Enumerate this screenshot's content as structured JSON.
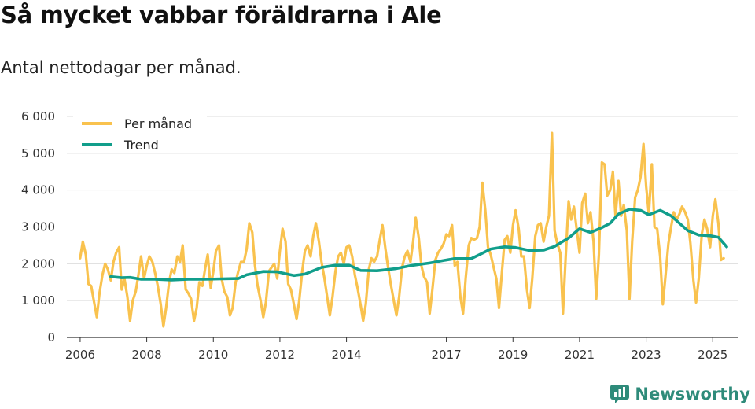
{
  "title": "Så mycket vabbar föräldrarna i Ale",
  "subtitle": "Antal nettodagar per månad.",
  "brand": {
    "name": "Newsworthy",
    "icon": "newsworthy-logo-icon",
    "color": "#2e8b7a"
  },
  "chart_data": {
    "type": "line",
    "title": "Så mycket vabbar föräldrarna i Ale",
    "subtitle": "Antal nettodagar per månad.",
    "xlabel": "",
    "ylabel": "",
    "xlim": [
      2005.6,
      2025.75
    ],
    "ylim": [
      0,
      6000
    ],
    "grid": true,
    "legend_position": "top-left",
    "x_ticks": [
      {
        "value": 2006,
        "label": "2006"
      },
      {
        "value": 2008,
        "label": "2008"
      },
      {
        "value": 2010,
        "label": "2010"
      },
      {
        "value": 2012,
        "label": "2012"
      },
      {
        "value": 2014,
        "label": "2014"
      },
      {
        "value": 2017,
        "label": "2017"
      },
      {
        "value": 2019,
        "label": "2019"
      },
      {
        "value": 2021,
        "label": "2021"
      },
      {
        "value": 2023,
        "label": "2023"
      },
      {
        "value": 2025,
        "label": "2025"
      }
    ],
    "y_ticks": [
      {
        "value": 0,
        "label": "0"
      },
      {
        "value": 1000,
        "label": "1 000"
      },
      {
        "value": 2000,
        "label": "2 000"
      },
      {
        "value": 3000,
        "label": "3 000"
      },
      {
        "value": 4000,
        "label": "4 000"
      },
      {
        "value": 5000,
        "label": "5 000"
      },
      {
        "value": 6000,
        "label": "6 000"
      }
    ],
    "series": [
      {
        "name": "Per månad",
        "color": "#f9c24e",
        "points": [
          [
            2006.0,
            2150
          ],
          [
            2006.08,
            2600
          ],
          [
            2006.17,
            2250
          ],
          [
            2006.25,
            1450
          ],
          [
            2006.33,
            1400
          ],
          [
            2006.42,
            950
          ],
          [
            2006.5,
            550
          ],
          [
            2006.58,
            1200
          ],
          [
            2006.67,
            1700
          ],
          [
            2006.75,
            2000
          ],
          [
            2006.83,
            1850
          ],
          [
            2006.92,
            1550
          ],
          [
            2007.0,
            2050
          ],
          [
            2007.08,
            2300
          ],
          [
            2007.17,
            2450
          ],
          [
            2007.25,
            1300
          ],
          [
            2007.33,
            1600
          ],
          [
            2007.42,
            1100
          ],
          [
            2007.5,
            450
          ],
          [
            2007.58,
            1000
          ],
          [
            2007.67,
            1250
          ],
          [
            2007.75,
            1700
          ],
          [
            2007.83,
            2200
          ],
          [
            2007.92,
            1600
          ],
          [
            2008.0,
            1950
          ],
          [
            2008.08,
            2200
          ],
          [
            2008.17,
            2050
          ],
          [
            2008.25,
            1750
          ],
          [
            2008.33,
            1400
          ],
          [
            2008.42,
            900
          ],
          [
            2008.5,
            300
          ],
          [
            2008.58,
            800
          ],
          [
            2008.67,
            1500
          ],
          [
            2008.75,
            1850
          ],
          [
            2008.83,
            1750
          ],
          [
            2008.92,
            2200
          ],
          [
            2009.0,
            2050
          ],
          [
            2009.08,
            2500
          ],
          [
            2009.17,
            1300
          ],
          [
            2009.25,
            1200
          ],
          [
            2009.33,
            1050
          ],
          [
            2009.42,
            450
          ],
          [
            2009.5,
            800
          ],
          [
            2009.58,
            1500
          ],
          [
            2009.67,
            1400
          ],
          [
            2009.75,
            1850
          ],
          [
            2009.83,
            2250
          ],
          [
            2009.92,
            1350
          ],
          [
            2010.0,
            1800
          ],
          [
            2010.08,
            2350
          ],
          [
            2010.17,
            2500
          ],
          [
            2010.25,
            1600
          ],
          [
            2010.33,
            1250
          ],
          [
            2010.42,
            1100
          ],
          [
            2010.5,
            600
          ],
          [
            2010.58,
            800
          ],
          [
            2010.67,
            1500
          ],
          [
            2010.75,
            1800
          ],
          [
            2010.83,
            2050
          ],
          [
            2010.92,
            2050
          ],
          [
            2011.0,
            2400
          ],
          [
            2011.08,
            3100
          ],
          [
            2011.17,
            2850
          ],
          [
            2011.25,
            1950
          ],
          [
            2011.33,
            1400
          ],
          [
            2011.42,
            1000
          ],
          [
            2011.5,
            550
          ],
          [
            2011.58,
            950
          ],
          [
            2011.67,
            1800
          ],
          [
            2011.75,
            1900
          ],
          [
            2011.83,
            2000
          ],
          [
            2011.92,
            1600
          ],
          [
            2012.0,
            2350
          ],
          [
            2012.08,
            2950
          ],
          [
            2012.17,
            2600
          ],
          [
            2012.25,
            1450
          ],
          [
            2012.33,
            1300
          ],
          [
            2012.42,
            900
          ],
          [
            2012.5,
            500
          ],
          [
            2012.58,
            1000
          ],
          [
            2012.67,
            1800
          ],
          [
            2012.75,
            2350
          ],
          [
            2012.83,
            2500
          ],
          [
            2012.92,
            2200
          ],
          [
            2013.0,
            2750
          ],
          [
            2013.08,
            3100
          ],
          [
            2013.17,
            2600
          ],
          [
            2013.25,
            2050
          ],
          [
            2013.33,
            1650
          ],
          [
            2013.42,
            1100
          ],
          [
            2013.5,
            600
          ],
          [
            2013.58,
            1100
          ],
          [
            2013.67,
            1800
          ],
          [
            2013.75,
            2200
          ],
          [
            2013.83,
            2300
          ],
          [
            2013.92,
            2000
          ],
          [
            2014.0,
            2450
          ],
          [
            2014.08,
            2500
          ],
          [
            2014.17,
            2200
          ],
          [
            2014.25,
            1700
          ],
          [
            2014.33,
            1350
          ],
          [
            2014.42,
            900
          ],
          [
            2014.5,
            450
          ],
          [
            2014.58,
            900
          ],
          [
            2014.67,
            1850
          ],
          [
            2014.75,
            2150
          ],
          [
            2014.83,
            2050
          ],
          [
            2014.92,
            2200
          ],
          [
            2015.0,
            2650
          ],
          [
            2015.08,
            3050
          ],
          [
            2015.17,
            2400
          ],
          [
            2015.25,
            1900
          ],
          [
            2015.33,
            1450
          ],
          [
            2015.42,
            1000
          ],
          [
            2015.5,
            600
          ],
          [
            2015.58,
            1100
          ],
          [
            2015.67,
            1900
          ],
          [
            2015.75,
            2200
          ],
          [
            2015.83,
            2350
          ],
          [
            2015.92,
            2050
          ],
          [
            2016.0,
            2600
          ],
          [
            2016.08,
            3250
          ],
          [
            2016.17,
            2700
          ],
          [
            2016.25,
            1950
          ],
          [
            2016.33,
            1650
          ],
          [
            2016.42,
            1500
          ],
          [
            2016.5,
            650
          ],
          [
            2016.58,
            1300
          ],
          [
            2016.67,
            2100
          ],
          [
            2016.75,
            2300
          ],
          [
            2016.83,
            2400
          ],
          [
            2016.92,
            2550
          ],
          [
            2017.0,
            2800
          ],
          [
            2017.08,
            2750
          ],
          [
            2017.17,
            3050
          ],
          [
            2017.25,
            1950
          ],
          [
            2017.33,
            2050
          ],
          [
            2017.42,
            1100
          ],
          [
            2017.5,
            650
          ],
          [
            2017.58,
            1600
          ],
          [
            2017.67,
            2500
          ],
          [
            2017.75,
            2700
          ],
          [
            2017.83,
            2650
          ],
          [
            2017.92,
            2700
          ],
          [
            2018.0,
            3000
          ],
          [
            2018.08,
            4200
          ],
          [
            2018.17,
            3450
          ],
          [
            2018.25,
            2450
          ],
          [
            2018.33,
            2250
          ],
          [
            2018.42,
            1900
          ],
          [
            2018.5,
            1600
          ],
          [
            2018.58,
            800
          ],
          [
            2018.67,
            1800
          ],
          [
            2018.75,
            2650
          ],
          [
            2018.83,
            2750
          ],
          [
            2018.92,
            2300
          ],
          [
            2019.0,
            3050
          ],
          [
            2019.08,
            3450
          ],
          [
            2019.17,
            2950
          ],
          [
            2019.25,
            2200
          ],
          [
            2019.33,
            2200
          ],
          [
            2019.42,
            1300
          ],
          [
            2019.5,
            800
          ],
          [
            2019.58,
            1600
          ],
          [
            2019.67,
            2750
          ],
          [
            2019.75,
            3050
          ],
          [
            2019.83,
            3100
          ],
          [
            2019.92,
            2600
          ],
          [
            2020.0,
            3000
          ],
          [
            2020.08,
            3300
          ],
          [
            2020.17,
            5550
          ],
          [
            2020.25,
            2900
          ],
          [
            2020.33,
            2550
          ],
          [
            2020.42,
            2300
          ],
          [
            2020.5,
            650
          ],
          [
            2020.58,
            2100
          ],
          [
            2020.67,
            3700
          ],
          [
            2020.75,
            3200
          ],
          [
            2020.83,
            3550
          ],
          [
            2020.92,
            2900
          ],
          [
            2021.0,
            2300
          ],
          [
            2021.08,
            3650
          ],
          [
            2021.17,
            3900
          ],
          [
            2021.25,
            3100
          ],
          [
            2021.33,
            3400
          ],
          [
            2021.42,
            2600
          ],
          [
            2021.5,
            1050
          ],
          [
            2021.58,
            2250
          ],
          [
            2021.67,
            4750
          ],
          [
            2021.75,
            4700
          ],
          [
            2021.83,
            3850
          ],
          [
            2021.92,
            4000
          ],
          [
            2022.0,
            4500
          ],
          [
            2022.08,
            3300
          ],
          [
            2022.17,
            4250
          ],
          [
            2022.25,
            3300
          ],
          [
            2022.33,
            3600
          ],
          [
            2022.42,
            2900
          ],
          [
            2022.5,
            1050
          ],
          [
            2022.58,
            2600
          ],
          [
            2022.67,
            3800
          ],
          [
            2022.75,
            4000
          ],
          [
            2022.83,
            4350
          ],
          [
            2022.92,
            5250
          ],
          [
            2023.0,
            4100
          ],
          [
            2023.08,
            3350
          ],
          [
            2023.17,
            4700
          ],
          [
            2023.25,
            3000
          ],
          [
            2023.33,
            2950
          ],
          [
            2023.42,
            2200
          ],
          [
            2023.5,
            900
          ],
          [
            2023.58,
            1650
          ],
          [
            2023.67,
            2550
          ],
          [
            2023.75,
            3000
          ],
          [
            2023.83,
            3400
          ],
          [
            2023.92,
            3200
          ],
          [
            2024.0,
            3350
          ],
          [
            2024.08,
            3550
          ],
          [
            2024.17,
            3400
          ],
          [
            2024.25,
            3200
          ],
          [
            2024.33,
            2550
          ],
          [
            2024.42,
            1550
          ],
          [
            2024.5,
            950
          ],
          [
            2024.58,
            1600
          ],
          [
            2024.67,
            2800
          ],
          [
            2024.75,
            3200
          ],
          [
            2024.83,
            2950
          ],
          [
            2024.92,
            2450
          ],
          [
            2025.0,
            3300
          ],
          [
            2025.08,
            3750
          ],
          [
            2025.17,
            3100
          ],
          [
            2025.25,
            2100
          ],
          [
            2025.33,
            2150
          ]
        ]
      },
      {
        "name": "Trend",
        "color": "#119e8b",
        "points": [
          [
            2006.92,
            1650
          ],
          [
            2007.25,
            1620
          ],
          [
            2007.5,
            1630
          ],
          [
            2007.83,
            1580
          ],
          [
            2008.25,
            1580
          ],
          [
            2008.75,
            1560
          ],
          [
            2009.25,
            1580
          ],
          [
            2009.75,
            1580
          ],
          [
            2010.25,
            1590
          ],
          [
            2010.75,
            1600
          ],
          [
            2011.0,
            1700
          ],
          [
            2011.5,
            1790
          ],
          [
            2011.92,
            1780
          ],
          [
            2012.42,
            1680
          ],
          [
            2012.75,
            1720
          ],
          [
            2013.25,
            1900
          ],
          [
            2013.67,
            1960
          ],
          [
            2014.08,
            1960
          ],
          [
            2014.42,
            1820
          ],
          [
            2014.92,
            1810
          ],
          [
            2015.5,
            1870
          ],
          [
            2015.92,
            1950
          ],
          [
            2016.5,
            2020
          ],
          [
            2016.92,
            2090
          ],
          [
            2017.25,
            2140
          ],
          [
            2017.75,
            2140
          ],
          [
            2018.0,
            2250
          ],
          [
            2018.33,
            2400
          ],
          [
            2018.75,
            2460
          ],
          [
            2019.08,
            2440
          ],
          [
            2019.5,
            2360
          ],
          [
            2019.92,
            2370
          ],
          [
            2020.25,
            2470
          ],
          [
            2020.67,
            2700
          ],
          [
            2021.0,
            2950
          ],
          [
            2021.33,
            2850
          ],
          [
            2021.67,
            2980
          ],
          [
            2021.92,
            3100
          ],
          [
            2022.17,
            3350
          ],
          [
            2022.5,
            3480
          ],
          [
            2022.83,
            3450
          ],
          [
            2023.08,
            3330
          ],
          [
            2023.42,
            3450
          ],
          [
            2023.75,
            3300
          ],
          [
            2024.0,
            3100
          ],
          [
            2024.25,
            2900
          ],
          [
            2024.58,
            2780
          ],
          [
            2024.92,
            2760
          ],
          [
            2025.17,
            2720
          ],
          [
            2025.42,
            2460
          ]
        ]
      }
    ]
  }
}
